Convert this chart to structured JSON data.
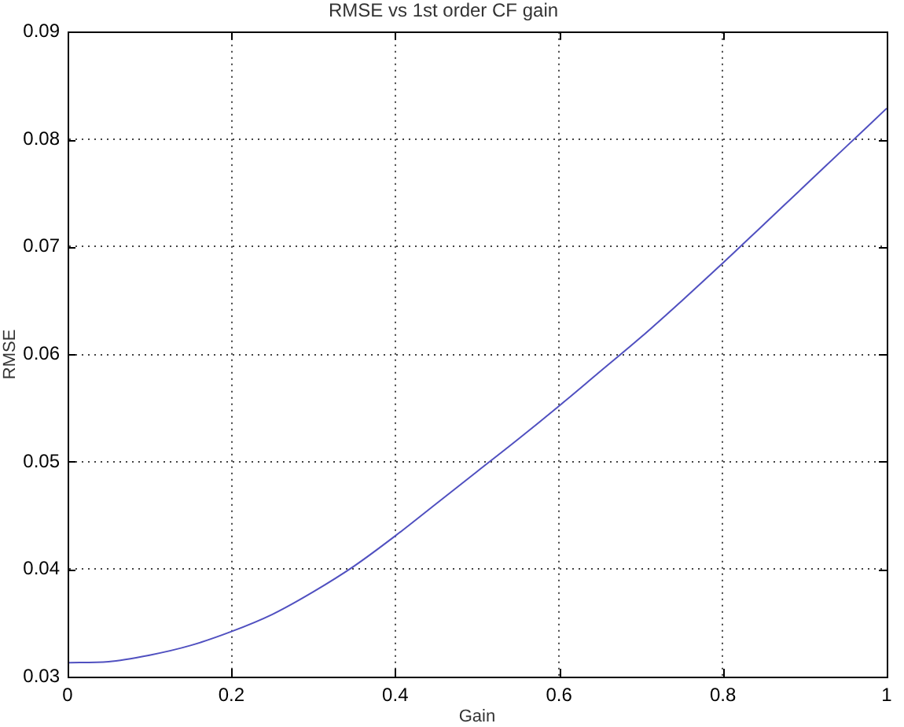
{
  "chart_data": {
    "type": "line",
    "title": "RMSE vs 1st order CF gain",
    "xlabel": "Gain",
    "ylabel": "RMSE",
    "x": [
      0,
      0.05,
      0.1,
      0.15,
      0.2,
      0.25,
      0.3,
      0.35,
      0.4,
      0.45,
      0.5,
      0.55,
      0.6,
      0.65,
      0.7,
      0.75,
      0.8,
      0.85,
      0.9,
      0.95,
      1
    ],
    "values": [
      0.0313,
      0.0314,
      0.032,
      0.0329,
      0.0342,
      0.0358,
      0.0379,
      0.0403,
      0.0431,
      0.0461,
      0.0491,
      0.0521,
      0.0552,
      0.0584,
      0.0616,
      0.065,
      0.0685,
      0.0721,
      0.0757,
      0.0793,
      0.0829
    ],
    "color": "#5050c0",
    "xlim": [
      0,
      1
    ],
    "ylim": [
      0.03,
      0.09
    ],
    "xticks": [
      0,
      0.2,
      0.4,
      0.6,
      0.8,
      1
    ],
    "yticks": [
      0.03,
      0.04,
      0.05,
      0.06,
      0.07,
      0.08,
      0.09
    ],
    "grid": true
  }
}
